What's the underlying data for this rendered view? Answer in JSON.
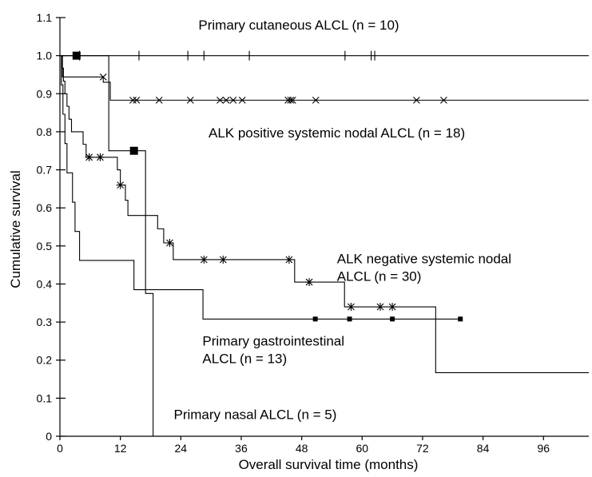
{
  "chart_data": {
    "type": "line",
    "subtype": "kaplan-meier step",
    "xlabel": "Overall survival time (months)",
    "ylabel": "Cumulative survival",
    "xlim": [
      0,
      105
    ],
    "ylim": [
      0,
      1.1
    ],
    "x_ticks": [
      "0",
      "12",
      "24",
      "36",
      "48",
      "60",
      "72",
      "84",
      "96"
    ],
    "y_ticks": [
      "0",
      "0.1",
      "0.2",
      "0.3",
      "0.4",
      "0.5",
      "0.6",
      "0.7",
      "0.8",
      "0.9",
      "1.0",
      "1.1"
    ],
    "grid": false,
    "series": [
      {
        "name": "Primary cutaneous ALCL (n = 10)",
        "censor_marker": "tick",
        "steps": [
          [
            0,
            1.0
          ],
          [
            105,
            1.0
          ]
        ],
        "censored": [
          [
            3.9,
            1.0
          ],
          [
            15.7,
            1.0
          ],
          [
            25.4,
            1.0
          ],
          [
            28.6,
            1.0
          ],
          [
            37.6,
            1.0
          ],
          [
            56.6,
            1.0
          ],
          [
            61.8,
            1.0
          ],
          [
            62.5,
            1.0
          ]
        ]
      },
      {
        "name": "ALK positive systemic nodal ALCL (n = 18)",
        "censor_marker": "x",
        "steps": [
          [
            0,
            1.0
          ],
          [
            0.5,
            0.944
          ],
          [
            8.6,
            0.944
          ],
          [
            8.6,
            0.93
          ],
          [
            10.0,
            0.93
          ],
          [
            10.0,
            0.883
          ],
          [
            105,
            0.883
          ]
        ],
        "censored": [
          [
            8.6,
            0.944
          ],
          [
            14.5,
            0.883
          ],
          [
            15.2,
            0.883
          ],
          [
            19.7,
            0.883
          ],
          [
            25.9,
            0.883
          ],
          [
            31.8,
            0.883
          ],
          [
            33.0,
            0.883
          ],
          [
            34.4,
            0.883
          ],
          [
            36.2,
            0.883
          ],
          [
            45.3,
            0.883
          ],
          [
            45.8,
            0.883
          ],
          [
            46.2,
            0.883
          ],
          [
            50.8,
            0.883
          ],
          [
            70.8,
            0.883
          ],
          [
            76.2,
            0.883
          ]
        ]
      },
      {
        "name": "ALK negative systemic nodal ALCL (n = 30)",
        "censor_marker": "asterisk",
        "steps": [
          [
            0,
            1.0
          ],
          [
            0.4,
            0.967
          ],
          [
            0.7,
            0.933
          ],
          [
            1.0,
            0.9
          ],
          [
            1.4,
            0.867
          ],
          [
            1.8,
            0.833
          ],
          [
            2.3,
            0.8
          ],
          [
            4.6,
            0.8
          ],
          [
            4.6,
            0.767
          ],
          [
            5.2,
            0.767
          ],
          [
            5.2,
            0.733
          ],
          [
            11.4,
            0.733
          ],
          [
            11.4,
            0.7
          ],
          [
            12.0,
            0.7
          ],
          [
            12.0,
            0.66
          ],
          [
            13.0,
            0.66
          ],
          [
            13.0,
            0.62
          ],
          [
            13.5,
            0.62
          ],
          [
            13.5,
            0.58
          ],
          [
            19.4,
            0.58
          ],
          [
            19.4,
            0.545
          ],
          [
            20.6,
            0.545
          ],
          [
            20.6,
            0.508
          ],
          [
            22.5,
            0.508
          ],
          [
            22.5,
            0.464
          ],
          [
            46.6,
            0.464
          ],
          [
            46.6,
            0.405
          ],
          [
            56.5,
            0.405
          ],
          [
            56.5,
            0.34
          ],
          [
            74.6,
            0.34
          ],
          [
            74.6,
            0.167
          ],
          [
            105,
            0.167
          ]
        ],
        "censored": [
          [
            5.8,
            0.733
          ],
          [
            8.0,
            0.733
          ],
          [
            12.0,
            0.66
          ],
          [
            21.8,
            0.508
          ],
          [
            28.6,
            0.464
          ],
          [
            32.4,
            0.464
          ],
          [
            45.5,
            0.464
          ],
          [
            49.5,
            0.405
          ],
          [
            57.8,
            0.34
          ],
          [
            63.6,
            0.34
          ],
          [
            66.0,
            0.34
          ]
        ]
      },
      {
        "name": "Primary gastrointestinal ALCL (n = 13)",
        "censor_marker": "square",
        "steps": [
          [
            0,
            1.0
          ],
          [
            0.3,
            0.923
          ],
          [
            0.6,
            0.846
          ],
          [
            1.0,
            0.769
          ],
          [
            1.4,
            0.692
          ],
          [
            2.5,
            0.692
          ],
          [
            2.5,
            0.615
          ],
          [
            3.0,
            0.615
          ],
          [
            3.0,
            0.538
          ],
          [
            3.9,
            0.538
          ],
          [
            3.9,
            0.462
          ],
          [
            14.7,
            0.462
          ],
          [
            14.7,
            0.385
          ],
          [
            28.4,
            0.385
          ],
          [
            28.4,
            0.308
          ],
          [
            79.5,
            0.308
          ]
        ],
        "censored": [
          [
            50.7,
            0.308
          ],
          [
            57.5,
            0.308
          ],
          [
            66.0,
            0.308
          ],
          [
            79.5,
            0.308
          ]
        ]
      },
      {
        "name": "Primary nasal ALCL (n = 5)",
        "censor_marker": "large-square",
        "steps": [
          [
            0,
            1.0
          ],
          [
            9.7,
            1.0
          ],
          [
            9.7,
            0.75
          ],
          [
            17.0,
            0.75
          ],
          [
            17.0,
            0.375
          ],
          [
            18.5,
            0.375
          ],
          [
            18.5,
            0.0
          ]
        ],
        "censored": [
          [
            3.3,
            1.0
          ],
          [
            14.7,
            0.75
          ]
        ]
      }
    ],
    "annotations": [
      {
        "lines": [
          "Primary cutaneous ALCL (n = 10)"
        ],
        "x": 27.5,
        "y": 1.068
      },
      {
        "lines": [
          "ALK positive systemic nodal ALCL (n = 18)"
        ],
        "x": 29.5,
        "y": 0.785
      },
      {
        "lines": [
          "ALK negative systemic nodal",
          "ALCL (n = 30)"
        ],
        "x": 55.0,
        "y": 0.455
      },
      {
        "lines": [
          "Primary gastrointestinal",
          "ALCL (n = 13)"
        ],
        "x": 28.3,
        "y": 0.238
      },
      {
        "lines": [
          "Primary nasal ALCL (n = 5)"
        ],
        "x": 22.6,
        "y": 0.045
      }
    ]
  }
}
